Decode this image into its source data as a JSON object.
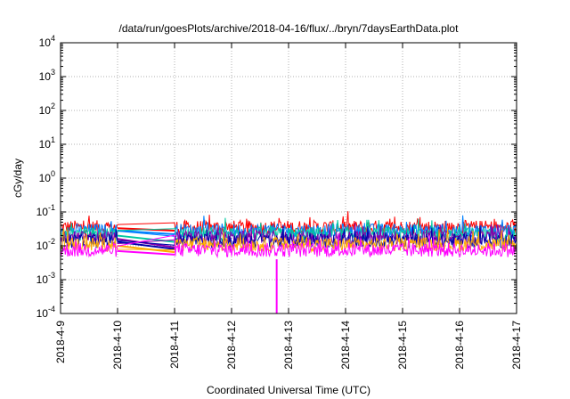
{
  "chart_data": {
    "type": "line",
    "title": "/data/run/goesPlots/archive/2018-04-16/flux/../bryn/7daysEarthData.plot",
    "xlabel": "Coordinated Universal Time (UTC)",
    "ylabel": "cGy/day",
    "y_scale": "log",
    "ylim": [
      0.0001,
      10000
    ],
    "xlim": [
      "2018-04-09",
      "2018-04-17"
    ],
    "grid": true,
    "legend": "none",
    "x_ticks": [
      "2018-4-9",
      "2018-4-10",
      "2018-4-11",
      "2018-4-12",
      "2018-4-13",
      "2018-4-14",
      "2018-4-15",
      "2018-4-16",
      "2018-4-17"
    ],
    "y_ticks": [
      {
        "value": 0.0001,
        "mantissa": "10",
        "exp": "-4"
      },
      {
        "value": 0.001,
        "mantissa": "10",
        "exp": "-3"
      },
      {
        "value": 0.01,
        "mantissa": "10",
        "exp": "-2"
      },
      {
        "value": 0.1,
        "mantissa": "10",
        "exp": "-1"
      },
      {
        "value": 1,
        "mantissa": "10",
        "exp": "0"
      },
      {
        "value": 10,
        "mantissa": "10",
        "exp": "1"
      },
      {
        "value": 100,
        "mantissa": "10",
        "exp": "2"
      },
      {
        "value": 1000,
        "mantissa": "10",
        "exp": "3"
      },
      {
        "value": 10000,
        "mantissa": "10",
        "exp": "4"
      }
    ],
    "data_gap": [
      "2018-04-10",
      "2018-04-11"
    ],
    "series": [
      {
        "color": "#ff0000",
        "level": 0.035,
        "before_gap": 0.033,
        "after_gap": 0.028
      },
      {
        "color": "#0080ff",
        "level": 0.028,
        "before_gap": 0.028,
        "after_gap": 0.022
      },
      {
        "color": "#00c8a0",
        "level": 0.022,
        "before_gap": 0.02,
        "after_gap": 0.013
      },
      {
        "color": "#8800aa",
        "level": 0.017,
        "before_gap": 0.016,
        "after_gap": 0.009
      },
      {
        "color": "#0000aa",
        "level": 0.014,
        "before_gap": 0.013,
        "after_gap": 0.008
      },
      {
        "color": "#ffaa00",
        "level": 0.011,
        "before_gap": 0.01,
        "after_gap": 0.0065
      },
      {
        "color": "#ff00ff",
        "level": 0.0075,
        "before_gap": 0.007,
        "after_gap": 0.0055
      }
    ],
    "dropout": {
      "time": "2018-04-12T19:00",
      "value": 0.0001,
      "color": "#ff00ff"
    }
  }
}
